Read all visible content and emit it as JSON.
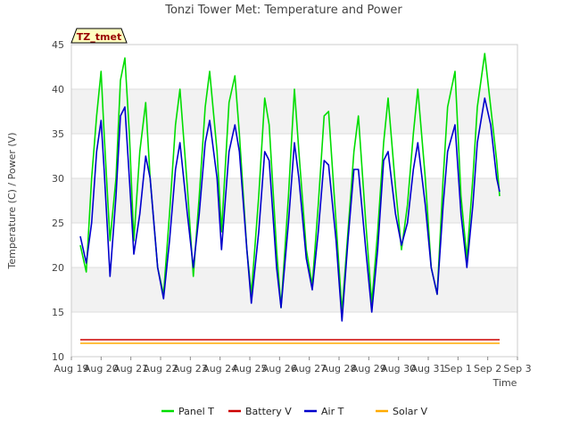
{
  "chart_data": {
    "type": "line",
    "title": "Tonzi Tower Met: Temperature and Power",
    "ylabel": "Temperature (C) / Power (V)",
    "xlabel": "Time",
    "badge": "TZ_tmet",
    "ylim": [
      10,
      45
    ],
    "yticks": [
      10,
      15,
      20,
      25,
      30,
      35,
      40,
      45
    ],
    "xlim": [
      0,
      15
    ],
    "xticks": [
      0,
      1,
      2,
      3,
      4,
      5,
      6,
      7,
      8,
      9,
      10,
      11,
      12,
      13,
      14,
      15
    ],
    "xtick_labels": [
      "Aug 19",
      "Aug 20",
      "Aug 21",
      "Aug 22",
      "Aug 23",
      "Aug 24",
      "Aug 25",
      "Aug 26",
      "Aug 27",
      "Aug 28",
      "Aug 29",
      "Aug 30",
      "Aug 31",
      "Sep 1",
      "Sep 2",
      "Sep 3"
    ],
    "grid": true,
    "band_fill": "#f2f2f2",
    "legend_position": "bottom",
    "series": [
      {
        "name": "Panel T",
        "color": "#00dd00",
        "x": [
          0.3,
          0.5,
          0.68,
          0.85,
          1.0,
          1.1,
          1.3,
          1.5,
          1.65,
          1.8,
          1.95,
          2.1,
          2.3,
          2.5,
          2.65,
          2.9,
          3.1,
          3.3,
          3.5,
          3.65,
          3.9,
          4.1,
          4.3,
          4.5,
          4.65,
          4.9,
          5.05,
          5.3,
          5.5,
          5.65,
          5.9,
          6.05,
          6.3,
          6.5,
          6.65,
          6.9,
          7.05,
          7.3,
          7.5,
          7.65,
          7.9,
          8.1,
          8.3,
          8.5,
          8.65,
          8.9,
          9.1,
          9.3,
          9.5,
          9.65,
          9.9,
          10.1,
          10.3,
          10.5,
          10.65,
          10.9,
          11.1,
          11.3,
          11.5,
          11.65,
          11.9,
          12.1,
          12.3,
          12.5,
          12.65,
          12.9,
          13.1,
          13.3,
          13.5,
          13.65,
          13.9,
          14.1,
          14.3,
          14.4
        ],
        "values": [
          22.5,
          19.5,
          30.0,
          37.0,
          42.0,
          35.0,
          23.0,
          30.0,
          41.0,
          43.5,
          35.0,
          23.0,
          33.0,
          38.5,
          30.0,
          20.0,
          17.0,
          26.0,
          36.0,
          40.0,
          29.0,
          19.0,
          28.0,
          38.0,
          42.0,
          33.0,
          24.0,
          38.5,
          41.5,
          35.0,
          22.0,
          17.0,
          28.0,
          39.0,
          36.0,
          22.0,
          15.5,
          28.0,
          40.0,
          33.0,
          22.0,
          18.0,
          27.0,
          37.0,
          37.5,
          25.0,
          15.0,
          24.0,
          33.0,
          37.0,
          25.0,
          16.0,
          24.0,
          34.0,
          39.0,
          29.0,
          22.0,
          27.0,
          35.0,
          40.0,
          30.0,
          20.0,
          17.0,
          30.0,
          38.0,
          42.0,
          28.0,
          21.0,
          30.0,
          38.0,
          44.0,
          38.0,
          32.0,
          28.0
        ]
      },
      {
        "name": "Battery V",
        "color": "#cc0000",
        "x": [
          0.3,
          14.4
        ],
        "values": [
          11.9,
          11.9
        ]
      },
      {
        "name": "Air T",
        "color": "#0000cc",
        "x": [
          0.3,
          0.5,
          0.68,
          0.85,
          1.0,
          1.1,
          1.3,
          1.5,
          1.65,
          1.8,
          1.95,
          2.1,
          2.3,
          2.5,
          2.65,
          2.9,
          3.1,
          3.3,
          3.5,
          3.65,
          3.9,
          4.1,
          4.3,
          4.5,
          4.65,
          4.9,
          5.05,
          5.3,
          5.5,
          5.65,
          5.9,
          6.05,
          6.3,
          6.5,
          6.65,
          6.9,
          7.05,
          7.3,
          7.5,
          7.65,
          7.9,
          8.1,
          8.3,
          8.5,
          8.65,
          8.9,
          9.1,
          9.3,
          9.5,
          9.65,
          9.9,
          10.1,
          10.3,
          10.5,
          10.65,
          10.9,
          11.1,
          11.3,
          11.5,
          11.65,
          11.9,
          12.1,
          12.3,
          12.5,
          12.65,
          12.9,
          13.1,
          13.3,
          13.5,
          13.65,
          13.9,
          14.1,
          14.3,
          14.4
        ],
        "values": [
          23.5,
          20.5,
          25.0,
          33.0,
          36.5,
          31.0,
          19.0,
          28.0,
          37.0,
          38.0,
          30.0,
          21.5,
          26.0,
          32.5,
          30.0,
          20.0,
          16.5,
          23.0,
          31.0,
          34.0,
          26.0,
          20.0,
          26.0,
          34.0,
          36.5,
          30.0,
          22.0,
          33.0,
          36.0,
          33.0,
          22.0,
          16.0,
          24.0,
          33.0,
          32.0,
          20.0,
          15.5,
          25.0,
          34.0,
          30.0,
          21.0,
          17.5,
          24.0,
          32.0,
          31.5,
          23.0,
          14.0,
          23.0,
          31.0,
          31.0,
          22.0,
          15.0,
          22.0,
          32.0,
          33.0,
          26.0,
          22.5,
          25.0,
          31.0,
          34.0,
          27.0,
          20.0,
          17.0,
          27.0,
          33.0,
          36.0,
          26.0,
          20.0,
          27.0,
          34.0,
          39.0,
          36.0,
          30.0,
          28.5
        ]
      },
      {
        "name": "Solar V",
        "color": "#ffaa00",
        "x": [
          0.3,
          14.4
        ],
        "values": [
          11.5,
          11.5
        ]
      }
    ]
  }
}
